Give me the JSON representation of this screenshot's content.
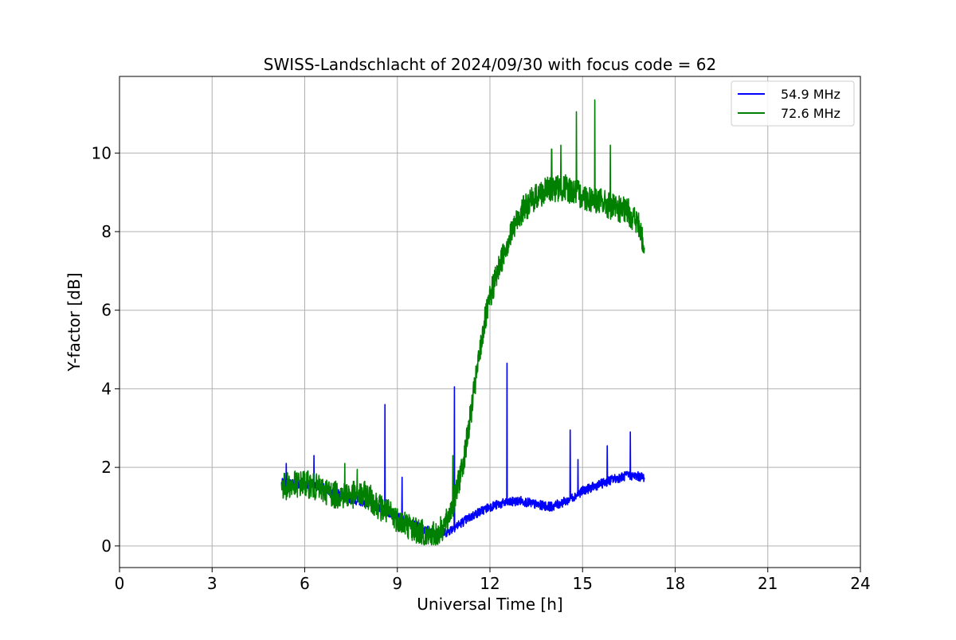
{
  "chart_data": {
    "type": "line",
    "title": "SWISS-Landschlacht of 2024/09/30 with focus code = 62",
    "xlabel": "Universal Time [h]",
    "ylabel": "Y-factor [dB]",
    "xlim": [
      0,
      24
    ],
    "ylim": [
      -0.55,
      11.95
    ],
    "xticks": [
      0,
      3,
      6,
      9,
      12,
      15,
      18,
      21,
      24
    ],
    "yticks": [
      0,
      2,
      4,
      6,
      8,
      10
    ],
    "grid": true,
    "legend_position": "top-right",
    "series": [
      {
        "name": "54.9 MHz",
        "color": "#0000ff",
        "x": [
          5.25,
          5.6,
          6.0,
          6.5,
          7.0,
          7.5,
          8.0,
          8.5,
          9.0,
          9.5,
          10.0,
          10.3,
          10.6,
          11.0,
          11.5,
          12.0,
          12.5,
          13.0,
          13.5,
          14.0,
          14.5,
          15.0,
          15.5,
          16.0,
          16.5,
          17.0
        ],
        "values": [
          1.6,
          1.6,
          1.55,
          1.5,
          1.35,
          1.2,
          1.1,
          0.95,
          0.75,
          0.55,
          0.4,
          0.3,
          0.35,
          0.55,
          0.8,
          1.0,
          1.1,
          1.15,
          1.05,
          1.0,
          1.15,
          1.4,
          1.55,
          1.7,
          1.8,
          1.75
        ],
        "spikes": [
          [
            5.4,
            2.1
          ],
          [
            6.3,
            2.3
          ],
          [
            8.6,
            3.6
          ],
          [
            9.15,
            1.75
          ],
          [
            10.85,
            4.05
          ],
          [
            12.55,
            4.65
          ],
          [
            14.6,
            2.95
          ],
          [
            14.85,
            2.2
          ],
          [
            15.8,
            2.55
          ],
          [
            16.55,
            2.9
          ]
        ],
        "noise": 0.12
      },
      {
        "name": "72.6 MHz",
        "color": "#008000",
        "x": [
          5.25,
          5.6,
          6.0,
          6.5,
          7.0,
          7.5,
          8.0,
          8.5,
          9.0,
          9.5,
          10.0,
          10.3,
          10.6,
          10.9,
          11.2,
          11.5,
          11.8,
          12.1,
          12.5,
          13.0,
          13.5,
          14.0,
          14.5,
          15.0,
          15.5,
          16.0,
          16.5,
          16.8,
          17.0
        ],
        "values": [
          1.5,
          1.55,
          1.6,
          1.45,
          1.3,
          1.3,
          1.3,
          0.95,
          0.7,
          0.45,
          0.25,
          0.3,
          0.6,
          1.3,
          2.4,
          4.0,
          5.6,
          6.6,
          7.6,
          8.5,
          8.9,
          9.1,
          9.1,
          8.9,
          8.8,
          8.6,
          8.5,
          8.2,
          7.6
        ],
        "spikes": [
          [
            7.3,
            2.1
          ],
          [
            7.7,
            1.95
          ],
          [
            10.8,
            2.3
          ],
          [
            14.3,
            10.2
          ],
          [
            14.8,
            11.05
          ],
          [
            15.4,
            11.35
          ],
          [
            15.9,
            10.2
          ],
          [
            14.0,
            10.1
          ]
        ],
        "noise": 0.35
      }
    ]
  }
}
